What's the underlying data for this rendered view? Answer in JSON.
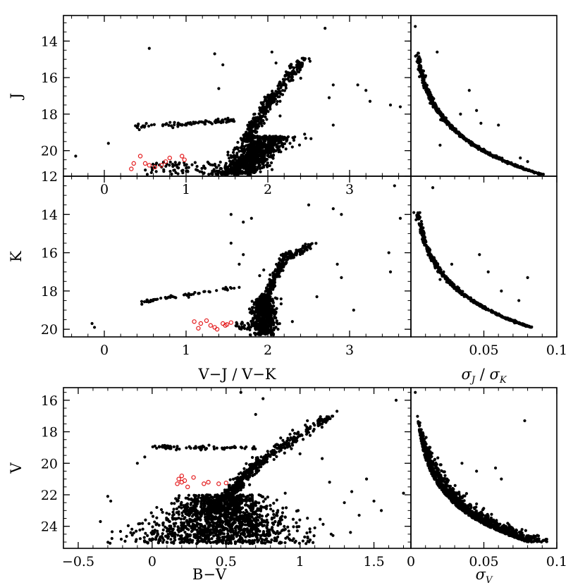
{
  "figure": {
    "colors": {
      "member": "#000000",
      "highlight": "#e41a1c",
      "frame": "#000000"
    }
  },
  "chart_data": [
    {
      "type": "scatter",
      "id": "j-cmd",
      "xlim": [
        -0.5,
        3.75
      ],
      "ylim": [
        21.4,
        12.6
      ],
      "xticks": [
        0,
        1,
        2,
        3
      ],
      "xtick_labels": [
        "0",
        "1",
        "2",
        "3"
      ],
      "yticks": [
        14,
        16,
        18,
        20
      ],
      "ytick_labels": [
        "14",
        "16",
        "18",
        "20"
      ],
      "xlabel": "",
      "ylabel": "J",
      "grid": false,
      "series": [
        {
          "name": "stars",
          "seed": 11,
          "generator": "cmd_j",
          "points": [
            [
              -0.35,
              20.3
            ],
            [
              0.05,
              19.6
            ],
            [
              0.55,
              14.4
            ],
            [
              1.35,
              14.7
            ],
            [
              1.45,
              15.3
            ],
            [
              1.4,
              16.6
            ],
            [
              2.1,
              15.2
            ],
            [
              2.05,
              14.6
            ],
            [
              2.15,
              17.3
            ],
            [
              2.15,
              18.1
            ],
            [
              2.45,
              19.1
            ],
            [
              2.3,
              19.8
            ],
            [
              2.7,
              13.3
            ],
            [
              2.8,
              16.4
            ],
            [
              2.8,
              18.6
            ],
            [
              2.75,
              17.1
            ],
            [
              3.1,
              16.4
            ],
            [
              3.2,
              16.7
            ],
            [
              3.25,
              17.3
            ],
            [
              3.5,
              17.5
            ],
            [
              3.62,
              17.6
            ],
            [
              1.85,
              18.8
            ],
            [
              1.95,
              20.0
            ],
            [
              1.6,
              19.9
            ]
          ]
        },
        {
          "name": "highlighted",
          "points": [
            [
              0.33,
              21.0
            ],
            [
              0.36,
              20.7
            ],
            [
              0.44,
              20.3
            ],
            [
              0.5,
              20.7
            ],
            [
              0.55,
              20.8
            ],
            [
              0.62,
              20.9
            ],
            [
              0.75,
              20.6
            ],
            [
              0.8,
              20.4
            ],
            [
              0.95,
              20.3
            ],
            [
              0.98,
              20.5
            ],
            [
              0.7,
              20.8
            ]
          ]
        }
      ]
    },
    {
      "type": "scatter",
      "id": "sigma-j",
      "xlim": [
        0,
        0.1
      ],
      "ylim": [
        21.4,
        12.6
      ],
      "xlabel": "",
      "ylabel": "",
      "grid": false,
      "series": [
        {
          "name": "stars",
          "seed": 23,
          "generator": "sigma_j",
          "points": [
            [
              0.018,
              14.6
            ],
            [
              0.04,
              16.7
            ],
            [
              0.045,
              17.8
            ],
            [
              0.048,
              18.5
            ],
            [
              0.034,
              18.0
            ],
            [
              0.06,
              18.6
            ],
            [
              0.075,
              20.4
            ],
            [
              0.08,
              20.6
            ],
            [
              0.02,
              19.7
            ],
            [
              0.003,
              13.2
            ]
          ]
        }
      ]
    },
    {
      "type": "scatter",
      "id": "k-cmd",
      "xlim": [
        -0.5,
        3.75
      ],
      "ylim": [
        20.4,
        12.0
      ],
      "xticks": [
        0,
        1,
        2,
        3
      ],
      "xtick_labels": [
        "0",
        "1",
        "2",
        "3"
      ],
      "yticks": [
        12,
        14,
        16,
        18,
        20
      ],
      "ytick_labels": [
        "12",
        "14",
        "16",
        "18",
        "20"
      ],
      "xlabel": "V−J / V−K",
      "ylabel": "K",
      "grid": false,
      "series": [
        {
          "name": "stars",
          "seed": 37,
          "generator": "cmd_k",
          "points": [
            [
              -0.15,
              19.7
            ],
            [
              -0.12,
              19.9
            ],
            [
              1.55,
              14.0
            ],
            [
              1.55,
              15.5
            ],
            [
              1.7,
              14.4
            ],
            [
              1.7,
              16.1
            ],
            [
              1.8,
              14.2
            ],
            [
              1.9,
              17.2
            ],
            [
              2.5,
              13.5
            ],
            [
              2.8,
              13.7
            ],
            [
              2.9,
              14.0
            ],
            [
              2.85,
              16.6
            ],
            [
              2.9,
              17.3
            ],
            [
              3.05,
              19.0
            ],
            [
              3.48,
              16.0
            ],
            [
              3.5,
              17.0
            ],
            [
              3.55,
              12.5
            ],
            [
              3.62,
              14.2
            ],
            [
              1.95,
              16.9
            ],
            [
              2.3,
              19.6
            ],
            [
              2.6,
              18.3
            ],
            [
              1.65,
              16.6
            ]
          ]
        },
        {
          "name": "highlighted",
          "points": [
            [
              1.1,
              19.6
            ],
            [
              1.15,
              19.95
            ],
            [
              1.18,
              19.7
            ],
            [
              1.25,
              19.55
            ],
            [
              1.3,
              19.8
            ],
            [
              1.35,
              19.9
            ],
            [
              1.38,
              20.0
            ],
            [
              1.45,
              19.7
            ],
            [
              1.5,
              19.75
            ],
            [
              1.55,
              19.65
            ],
            [
              1.48,
              19.8
            ]
          ]
        }
      ]
    },
    {
      "type": "scatter",
      "id": "sigma-k",
      "xlim": [
        0,
        0.1
      ],
      "ylim": [
        20.4,
        12.0
      ],
      "xticks": [
        0.05,
        0.1
      ],
      "xtick_labels": [
        "0.05",
        "0.1"
      ],
      "xlabel": "σJ / σK",
      "ylabel": "",
      "grid": false,
      "series": [
        {
          "name": "stars",
          "seed": 41,
          "generator": "sigma_k",
          "points": [
            [
              0.015,
              12.6
            ],
            [
              0.02,
              17.4
            ],
            [
              0.028,
              16.6
            ],
            [
              0.047,
              16.1
            ],
            [
              0.053,
              17.0
            ],
            [
              0.062,
              18.0
            ],
            [
              0.074,
              18.5
            ],
            [
              0.08,
              17.3
            ],
            [
              0.002,
              13.9
            ]
          ]
        }
      ]
    },
    {
      "type": "scatter",
      "id": "v-cmd",
      "xlim": [
        -0.6,
        1.75
      ],
      "ylim": [
        25.4,
        15.2
      ],
      "xticks": [
        -0.5,
        0,
        0.5,
        1,
        1.5
      ],
      "xtick_labels": [
        "−0.5",
        "0",
        "0.5",
        "1",
        "1.5"
      ],
      "yticks": [
        16,
        18,
        20,
        22,
        24
      ],
      "ytick_labels": [
        "16",
        "18",
        "20",
        "22",
        "24"
      ],
      "xlabel": "B−V",
      "ylabel": "V",
      "grid": false,
      "series": [
        {
          "name": "stars",
          "seed": 53,
          "generator": "cmd_v",
          "points": [
            [
              -0.35,
              23.7
            ],
            [
              -0.3,
              22.1
            ],
            [
              -0.28,
              22.4
            ],
            [
              -0.1,
              20.0
            ],
            [
              -0.05,
              19.6
            ],
            [
              0.6,
              15.5
            ],
            [
              0.75,
              15.9
            ],
            [
              0.7,
              16.9
            ],
            [
              0.95,
              17.9
            ],
            [
              1.0,
              19.4
            ],
            [
              1.15,
              19.7
            ],
            [
              1.2,
              21.2
            ],
            [
              1.3,
              22.5
            ],
            [
              1.35,
              21.8
            ],
            [
              1.4,
              23.3
            ],
            [
              1.45,
              21.0
            ],
            [
              1.5,
              22.4
            ],
            [
              1.55,
              23.0
            ],
            [
              1.65,
              16.0
            ],
            [
              1.7,
              21.9
            ],
            [
              1.25,
              16.7
            ],
            [
              1.05,
              17.3
            ],
            [
              0.65,
              20.6
            ],
            [
              0.85,
              23.0
            ],
            [
              0.9,
              21.9
            ],
            [
              1.1,
              24.1
            ],
            [
              0.0,
              24.5
            ],
            [
              0.05,
              24.8
            ],
            [
              0.45,
              25.0
            ]
          ]
        },
        {
          "name": "highlighted",
          "points": [
            [
              0.17,
              21.3
            ],
            [
              0.18,
              21.0
            ],
            [
              0.2,
              20.8
            ],
            [
              0.2,
              21.2
            ],
            [
              0.22,
              21.1
            ],
            [
              0.24,
              21.5
            ],
            [
              0.28,
              20.9
            ],
            [
              0.35,
              21.3
            ],
            [
              0.38,
              21.2
            ],
            [
              0.45,
              21.3
            ],
            [
              0.5,
              21.25
            ]
          ]
        }
      ]
    },
    {
      "type": "scatter",
      "id": "sigma-v",
      "xlim": [
        0,
        0.1
      ],
      "ylim": [
        25.4,
        15.2
      ],
      "xticks": [
        0,
        0.05,
        0.1
      ],
      "xtick_labels": [
        "0",
        "0.05",
        "0.1"
      ],
      "xlabel": "σV",
      "ylabel": "",
      "grid": false,
      "series": [
        {
          "name": "stars",
          "seed": 67,
          "generator": "sigma_v",
          "points": [
            [
              0.078,
              17.3
            ],
            [
              0.035,
              20.0
            ],
            [
              0.045,
              20.5
            ],
            [
              0.058,
              20.3
            ],
            [
              0.062,
              21.0
            ],
            [
              0.003,
              15.5
            ]
          ]
        }
      ]
    }
  ]
}
